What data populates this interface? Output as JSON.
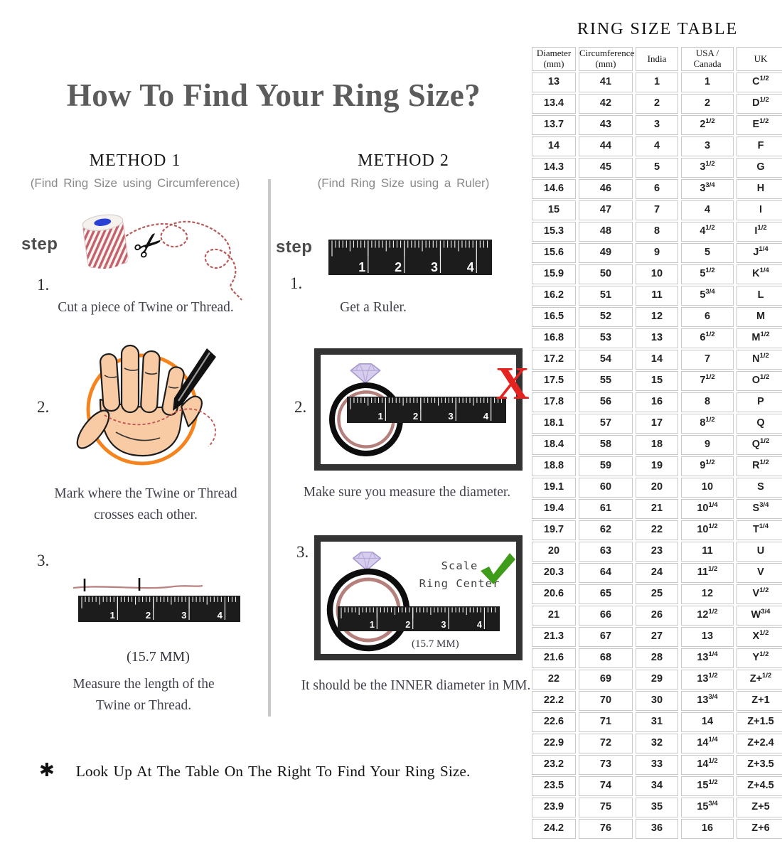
{
  "page": {
    "title": "How To Find Your Ring Size?",
    "footnote_symbol": "✱",
    "footnote": "Look Up At The Table On The Right To Find Your Ring Size."
  },
  "icons": {
    "scissors": "✂",
    "red_x": "X"
  },
  "ruler_numbers": [
    "1",
    "2",
    "3",
    "4"
  ],
  "method1": {
    "title": "METHOD 1",
    "subtitle": "(Find Ring Size using Circumference)",
    "step_label": "step",
    "steps": [
      {
        "num": "1.",
        "caption": "Cut a piece of Twine or Thread."
      },
      {
        "num": "2.",
        "caption": "Mark where the Twine or Thread crosses each other."
      },
      {
        "num": "3.",
        "caption": "Measure the length of the Twine or Thread.",
        "measurement": "(15.7 MM)"
      }
    ]
  },
  "method2": {
    "title": "METHOD 2",
    "subtitle": "(Find Ring Size using a Ruler)",
    "step_label": "step",
    "steps": [
      {
        "num": "1.",
        "caption": "Get a Ruler."
      },
      {
        "num": "2.",
        "caption": "Make sure you measure the diameter."
      },
      {
        "num": "3.",
        "caption": "It should be the INNER diameter in MM.",
        "measurement": "(15.7 MM)",
        "scale_note_line1": "Scale",
        "scale_note_line2": "Ring Center"
      }
    ]
  },
  "table": {
    "title": "RING SIZE TABLE",
    "columns": [
      [
        "Diameter",
        "(mm)"
      ],
      [
        "Circumference",
        "(mm)"
      ],
      [
        "India"
      ],
      [
        "USA /",
        "Canada"
      ],
      [
        "UK"
      ]
    ],
    "rows": [
      [
        "13",
        "41",
        "1",
        "1",
        "C^1/2"
      ],
      [
        "13.4",
        "42",
        "2",
        "2",
        "D^1/2"
      ],
      [
        "13.7",
        "43",
        "3",
        "2^1/2",
        "E^1/2"
      ],
      [
        "14",
        "44",
        "4",
        "3",
        "F"
      ],
      [
        "14.3",
        "45",
        "5",
        "3^1/2",
        "G"
      ],
      [
        "14.6",
        "46",
        "6",
        "3^3/4",
        "H"
      ],
      [
        "15",
        "47",
        "7",
        "4",
        "I"
      ],
      [
        "15.3",
        "48",
        "8",
        "4^1/2",
        "I^1/2"
      ],
      [
        "15.6",
        "49",
        "9",
        "5",
        "J^1/4"
      ],
      [
        "15.9",
        "50",
        "10",
        "5^1/2",
        "K^1/4"
      ],
      [
        "16.2",
        "51",
        "11",
        "5^3/4",
        "L"
      ],
      [
        "16.5",
        "52",
        "12",
        "6",
        "M"
      ],
      [
        "16.8",
        "53",
        "13",
        "6^1/2",
        "M^1/2"
      ],
      [
        "17.2",
        "54",
        "14",
        "7",
        "N^1/2"
      ],
      [
        "17.5",
        "55",
        "15",
        "7^1/2",
        "O^1/2"
      ],
      [
        "17.8",
        "56",
        "16",
        "8",
        "P"
      ],
      [
        "18.1",
        "57",
        "17",
        "8^1/2",
        "Q"
      ],
      [
        "18.4",
        "58",
        "18",
        "9",
        "Q^1/2"
      ],
      [
        "18.8",
        "59",
        "19",
        "9^1/2",
        "R^1/2"
      ],
      [
        "19.1",
        "60",
        "20",
        "10",
        "S"
      ],
      [
        "19.4",
        "61",
        "21",
        "10^1/4",
        "S^3/4"
      ],
      [
        "19.7",
        "62",
        "22",
        "10^1/2",
        "T^1/4"
      ],
      [
        "20",
        "63",
        "23",
        "11",
        "U"
      ],
      [
        "20.3",
        "64",
        "24",
        "11^1/2",
        "V"
      ],
      [
        "20.6",
        "65",
        "25",
        "12",
        "V^1/2"
      ],
      [
        "21",
        "66",
        "26",
        "12^1/2",
        "W^3/4"
      ],
      [
        "21.3",
        "67",
        "27",
        "13",
        "X^1/2"
      ],
      [
        "21.6",
        "68",
        "28",
        "13^1/4",
        "Y^1/2"
      ],
      [
        "22",
        "69",
        "29",
        "13^1/2",
        "Z+^1/2"
      ],
      [
        "22.2",
        "70",
        "30",
        "13^3/4",
        "Z+1"
      ],
      [
        "22.6",
        "71",
        "31",
        "14",
        "Z+1.5"
      ],
      [
        "22.9",
        "72",
        "32",
        "14^1/4",
        "Z+2.4"
      ],
      [
        "23.2",
        "73",
        "33",
        "14^1/2",
        "Z+3.5"
      ],
      [
        "23.5",
        "74",
        "34",
        "15^1/2",
        "Z+4.5"
      ],
      [
        "23.9",
        "75",
        "35",
        "15^3/4",
        "Z+5"
      ],
      [
        "24.2",
        "76",
        "36",
        "16",
        "Z+6"
      ]
    ]
  },
  "colors": {
    "accent_orange": "#f5831e",
    "ring_pink": "#b5807c",
    "diamond_purple": "#d7cded",
    "check_green": "#3f9c1b",
    "x_red": "#e42320",
    "thread_red": "#b85a5a",
    "title_gray": "#5c5c5c"
  }
}
